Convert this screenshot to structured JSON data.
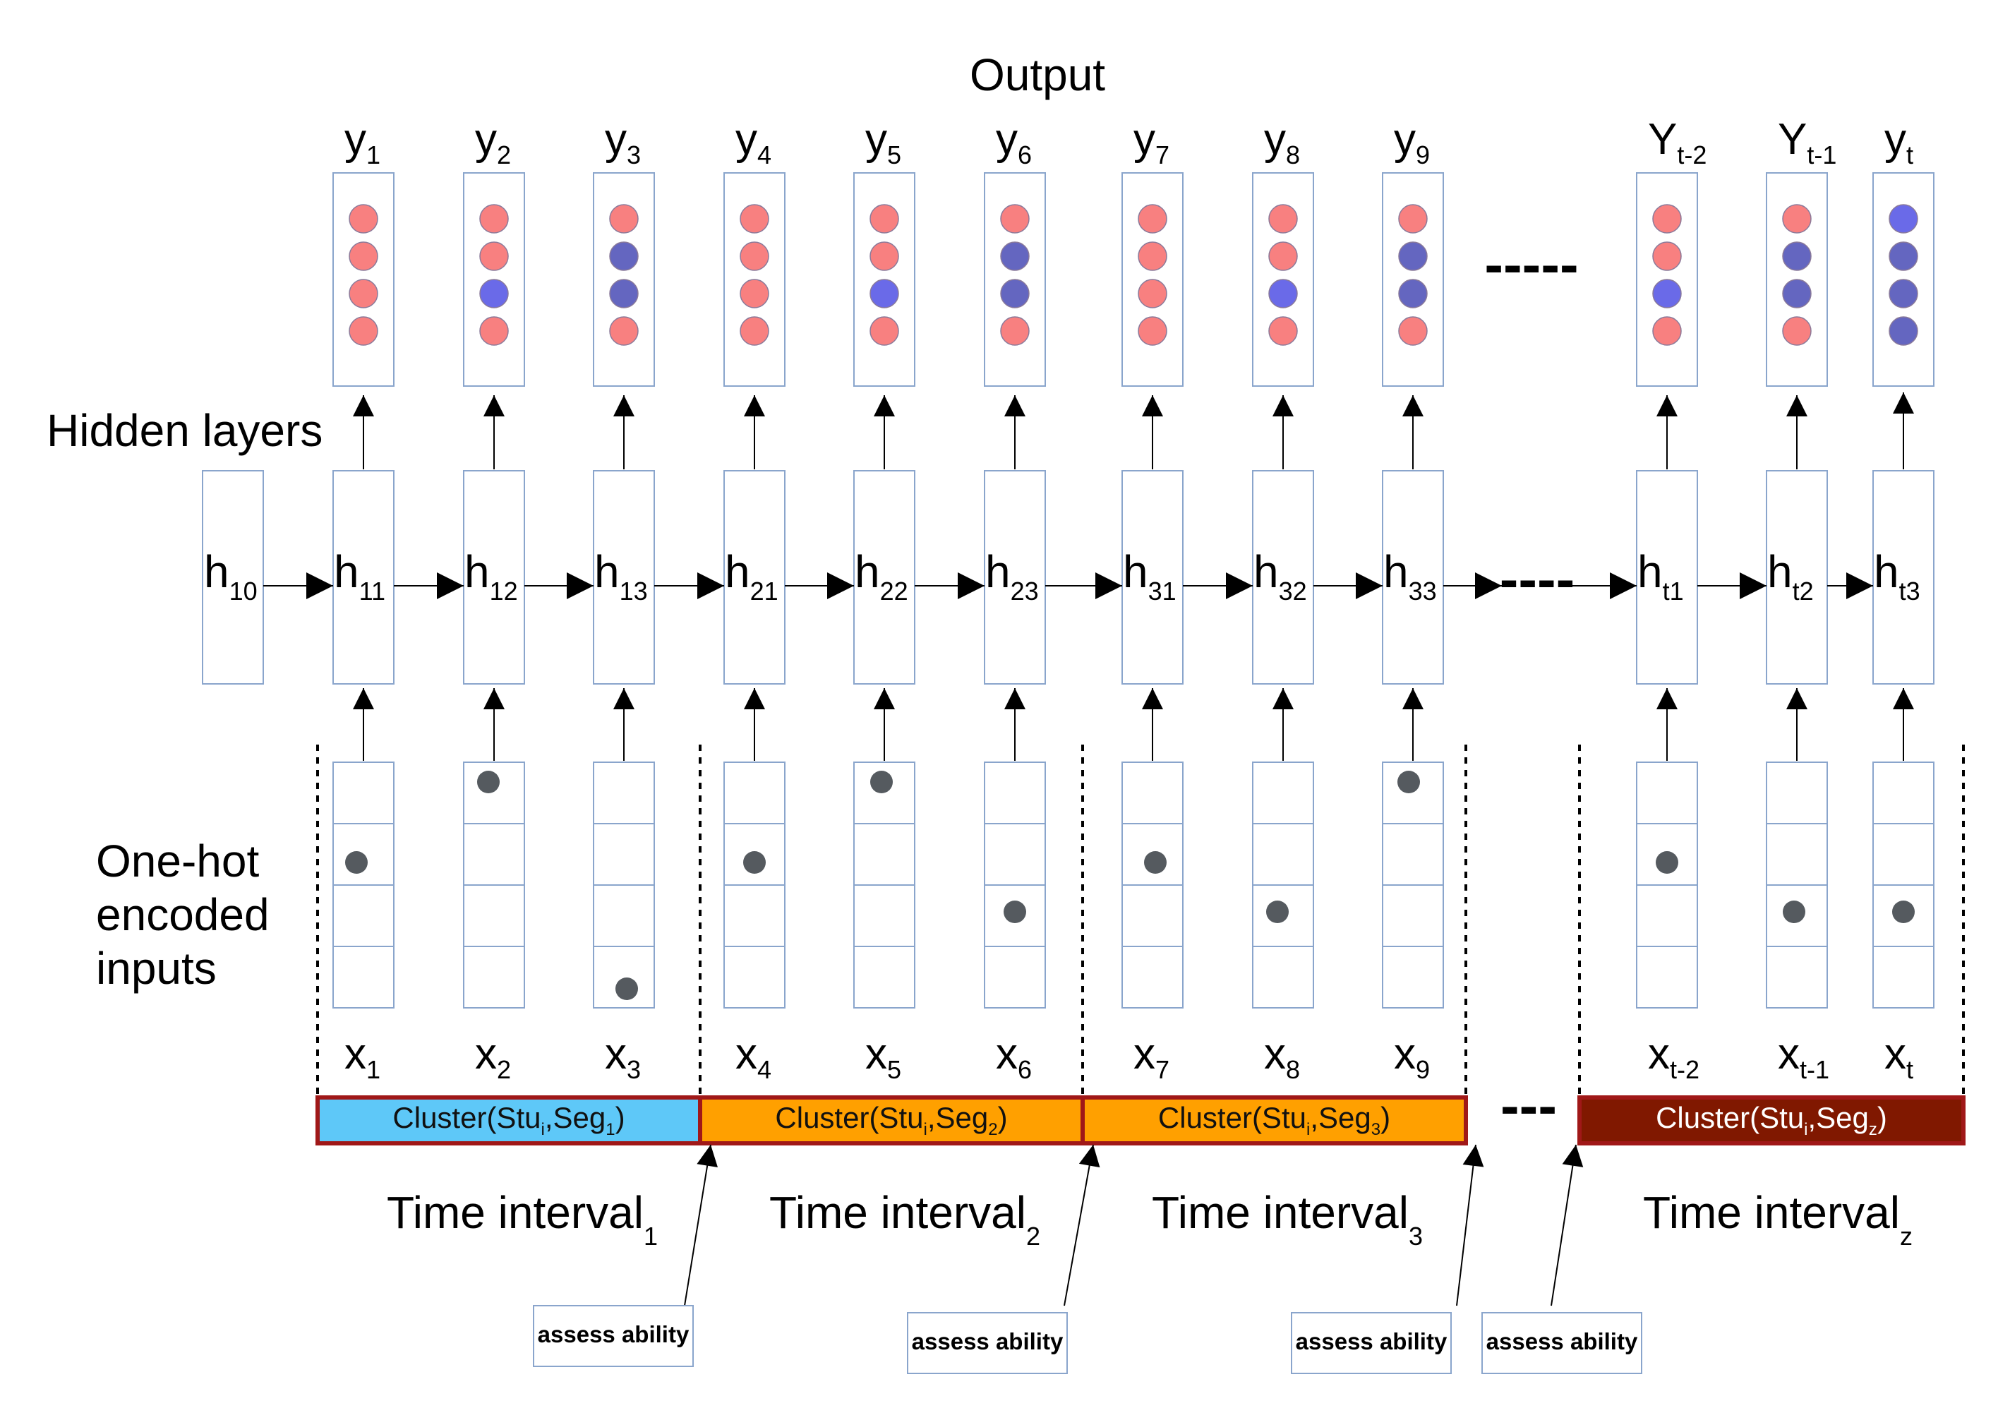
{
  "labels": {
    "output": "Output",
    "hidden_layers": "Hidden layers",
    "inputs_line1": "One-hot",
    "inputs_line2": "encoded",
    "inputs_line3": "inputs",
    "ellipsis_output": "-----",
    "ellipsis_hidden": "----",
    "ellipsis_cluster": "---"
  },
  "colors": {
    "red_dot": "#f88080",
    "blue_bright": "#6a6ae8",
    "blue_dark": "#6466c0",
    "gray_dot": "#555a5f",
    "box_border": "#8aa5cc",
    "cluster_cyan": "#5ec8f8",
    "cluster_orange": "#ffa000",
    "cluster_dark": "#801800",
    "cluster_border": "#a01818"
  },
  "output_columns": [
    {
      "base": "y",
      "sub": "1",
      "dots": [
        "red",
        "red",
        "red",
        "red"
      ]
    },
    {
      "base": "y",
      "sub": "2",
      "dots": [
        "red",
        "red",
        "blue",
        "red"
      ]
    },
    {
      "base": "y",
      "sub": "3",
      "dots": [
        "red",
        "dark",
        "dark",
        "red"
      ]
    },
    {
      "base": "y",
      "sub": "4",
      "dots": [
        "red",
        "red",
        "red",
        "red"
      ]
    },
    {
      "base": "y",
      "sub": "5",
      "dots": [
        "red",
        "red",
        "blue",
        "red"
      ]
    },
    {
      "base": "y",
      "sub": "6",
      "dots": [
        "red",
        "dark",
        "dark",
        "red"
      ]
    },
    {
      "base": "y",
      "sub": "7",
      "dots": [
        "red",
        "red",
        "red",
        "red"
      ]
    },
    {
      "base": "y",
      "sub": "8",
      "dots": [
        "red",
        "red",
        "blue",
        "red"
      ]
    },
    {
      "base": "y",
      "sub": "9",
      "dots": [
        "red",
        "dark",
        "dark",
        "red"
      ]
    },
    {
      "base": "Y",
      "sub": "t-2",
      "dots": [
        "red",
        "red",
        "blue",
        "red"
      ]
    },
    {
      "base": "Y",
      "sub": "t-1",
      "dots": [
        "red",
        "dark",
        "dark",
        "red"
      ]
    },
    {
      "base": "y",
      "sub": "t",
      "dots": [
        "blue",
        "dark",
        "dark",
        "dark"
      ]
    }
  ],
  "hidden_initial": {
    "base": "h",
    "sub": "10"
  },
  "hidden_states": [
    {
      "base": "h",
      "sub": "11"
    },
    {
      "base": "h",
      "sub": "12"
    },
    {
      "base": "h",
      "sub": "13"
    },
    {
      "base": "h",
      "sub": "21"
    },
    {
      "base": "h",
      "sub": "22"
    },
    {
      "base": "h",
      "sub": "23"
    },
    {
      "base": "h",
      "sub": "31"
    },
    {
      "base": "h",
      "sub": "32"
    },
    {
      "base": "h",
      "sub": "33"
    },
    {
      "base": "h",
      "sub": "t1"
    },
    {
      "base": "h",
      "sub": "t2"
    },
    {
      "base": "h",
      "sub": "t3"
    }
  ],
  "input_columns": [
    {
      "base": "x",
      "sub": "1",
      "hot": 2
    },
    {
      "base": "x",
      "sub": "2",
      "hot": 1
    },
    {
      "base": "x",
      "sub": "3",
      "hot": 4
    },
    {
      "base": "x",
      "sub": "4",
      "hot": 2
    },
    {
      "base": "x",
      "sub": "5",
      "hot": 1
    },
    {
      "base": "x",
      "sub": "6",
      "hot": 3
    },
    {
      "base": "x",
      "sub": "7",
      "hot": 2
    },
    {
      "base": "x",
      "sub": "8",
      "hot": 3
    },
    {
      "base": "x",
      "sub": "9",
      "hot": 1
    },
    {
      "base": "x",
      "sub": "t-2",
      "hot": 2
    },
    {
      "base": "x",
      "sub": "t-1",
      "hot": 3
    },
    {
      "base": "x",
      "sub": "t",
      "hot": 3
    }
  ],
  "clusters": [
    {
      "text": "Cluster(Stu",
      "sub1": "i",
      "mid": ",Seg",
      "sub2": "1",
      "end": ")",
      "color": "cyan"
    },
    {
      "text": "Cluster(Stu",
      "sub1": "i",
      "mid": ",Seg",
      "sub2": "2",
      "end": ")",
      "color": "orange"
    },
    {
      "text": "Cluster(Stu",
      "sub1": "i",
      "mid": ",Seg",
      "sub2": "3",
      "end": ")",
      "color": "orange"
    },
    {
      "text": "Cluster(Stu",
      "sub1": "i",
      "mid": ",Seg",
      "sub2": "z",
      "end": ")",
      "color": "dark"
    }
  ],
  "time_intervals": [
    {
      "base": "Time interval",
      "sub": "1"
    },
    {
      "base": "Time interval",
      "sub": "2"
    },
    {
      "base": "Time interval",
      "sub": "3"
    },
    {
      "base": "Time interval",
      "sub": "z"
    }
  ],
  "assess_boxes": [
    {
      "label": "assess ability"
    },
    {
      "label": "assess ability"
    },
    {
      "label": "assess ability"
    },
    {
      "label": "assess ability"
    }
  ]
}
